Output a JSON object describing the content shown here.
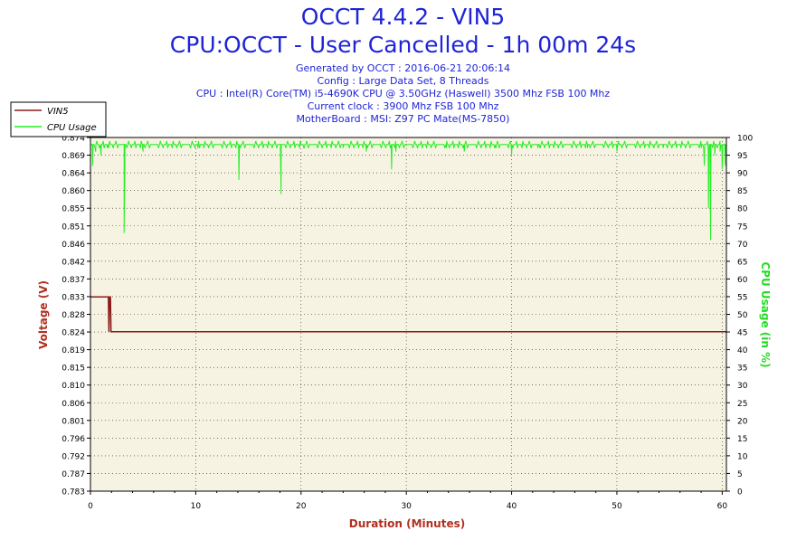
{
  "header": {
    "title": "OCCT 4.4.2 - VIN5",
    "subtitle": "CPU:OCCT - User Cancelled - 1h 00m 24s",
    "info_lines": [
      "Generated by OCCT : 2016-06-21 20:06:14",
      "Config : Large Data Set, 8 Threads",
      "CPU : Intel(R) Core(TM) i5-4690K CPU @ 3.50GHz (Haswell) 3500 Mhz FSB 100 Mhz",
      "Current clock : 3900 Mhz FSB 100 Mhz",
      "MotherBoard : MSI: Z97 PC Mate(MS-7850)"
    ]
  },
  "colors": {
    "title": "#1f25d6",
    "vin5": "#8b1a1a",
    "cpu": "#22ee22",
    "plot_bg": "#f7f3e3",
    "axis_left_label": "#b03020",
    "axis_right_label": "#22dd22",
    "axis_bottom_label": "#b03020"
  },
  "chart_data": {
    "type": "line",
    "xlabel": "Duration (Minutes)",
    "ylabel": "Voltage (V)",
    "y2label": "CPU Usage (in %)",
    "xlim": [
      0,
      60.4
    ],
    "ylim": [
      0.783,
      0.874
    ],
    "y2lim": [
      0,
      100
    ],
    "x_ticks": [
      "0",
      "10",
      "20",
      "30",
      "40",
      "50",
      "60"
    ],
    "x_tick_values": [
      0,
      10,
      20,
      30,
      40,
      50,
      60
    ],
    "y_ticks": [
      "0.783",
      "0.787",
      "0.792",
      "0.796",
      "0.801",
      "0.806",
      "0.810",
      "0.815",
      "0.819",
      "0.824",
      "0.828",
      "0.833",
      "0.837",
      "0.842",
      "0.846",
      "0.851",
      "0.855",
      "0.860",
      "0.864",
      "0.869",
      "0.874"
    ],
    "y2_ticks": [
      "0",
      "5",
      "10",
      "15",
      "20",
      "25",
      "30",
      "35",
      "40",
      "45",
      "50",
      "55",
      "60",
      "65",
      "70",
      "75",
      "80",
      "85",
      "90",
      "95",
      "100"
    ],
    "grid": true,
    "legend_placement": "top-left",
    "series": [
      {
        "name": "VIN5",
        "axis": "left",
        "points": [
          [
            0,
            0.833
          ],
          [
            1.7,
            0.833
          ],
          [
            1.75,
            0.824
          ],
          [
            1.8,
            0.833
          ],
          [
            1.9,
            0.833
          ],
          [
            1.95,
            0.824
          ],
          [
            60.4,
            0.824
          ]
        ]
      },
      {
        "name": "CPU Usage",
        "axis": "right",
        "baseline": 98,
        "dips": [
          [
            0.2,
            92
          ],
          [
            0.5,
            96
          ],
          [
            1.0,
            95
          ],
          [
            1.6,
            97
          ],
          [
            3.2,
            73
          ],
          [
            5.0,
            96
          ],
          [
            10.2,
            97
          ],
          [
            14.1,
            88
          ],
          [
            18.1,
            84
          ],
          [
            20.3,
            97
          ],
          [
            24.0,
            97
          ],
          [
            26.2,
            96
          ],
          [
            28.6,
            91
          ],
          [
            29.0,
            96
          ],
          [
            31.5,
            97
          ],
          [
            33.8,
            97
          ],
          [
            35.5,
            96
          ],
          [
            38.5,
            97
          ],
          [
            40.0,
            95
          ],
          [
            42.5,
            97
          ],
          [
            47.2,
            97
          ],
          [
            50.0,
            96
          ],
          [
            54.4,
            97
          ],
          [
            58.0,
            97
          ],
          [
            58.3,
            92
          ],
          [
            58.7,
            80
          ],
          [
            58.9,
            71
          ],
          [
            59.3,
            95
          ],
          [
            59.8,
            96
          ],
          [
            60.0,
            91
          ],
          [
            60.3,
            92
          ]
        ]
      }
    ]
  }
}
